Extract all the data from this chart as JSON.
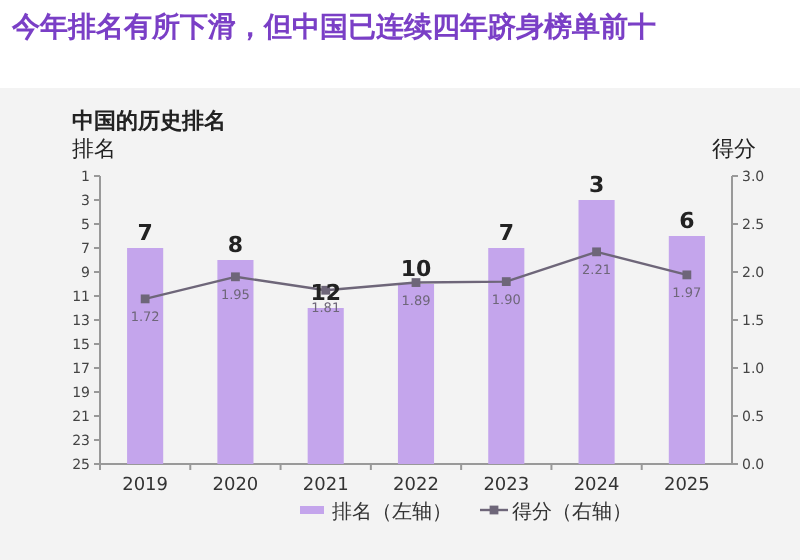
{
  "chart_data": {
    "type": "bar",
    "title": "今年排名有所下滑，但中国已连续四年跻身榜单前十",
    "subtitle": "中国的历史排名",
    "ylabel": "排名",
    "y2label": "得分",
    "categories": [
      "2019",
      "2020",
      "2021",
      "2022",
      "2023",
      "2024",
      "2025"
    ],
    "series": [
      {
        "name": "排名（左轴）",
        "color": "#c4a5ec",
        "base": [
          25,
          25,
          25,
          25,
          25,
          25,
          25
        ],
        "values": [
          -18,
          -17,
          -13,
          -15,
          -18,
          -22,
          -19
        ],
        "value_labels": [
          "7",
          "8",
          "12",
          "10",
          "7",
          "3",
          "6"
        ]
      },
      {
        "name": "得分（右轴）",
        "type": "line",
        "axis": "y2",
        "color": "#6e6679",
        "values": [
          1.72,
          1.95,
          1.81,
          1.89,
          1.9,
          2.21,
          1.97
        ],
        "value_labels": [
          "1.72",
          "1.95",
          "1.81",
          "1.89",
          "1.90",
          "2.21",
          "1.97"
        ]
      }
    ],
    "ylim": [
      25,
      1
    ],
    "yticks": [
      1,
      3,
      5,
      7,
      9,
      11,
      13,
      15,
      17,
      19,
      21,
      23,
      25
    ],
    "y2lim": [
      0,
      3
    ],
    "y2ticks": [
      {
        "value": 0,
        "label": "0.0"
      },
      {
        "value": 0.5,
        "label": "0.5"
      },
      {
        "value": 1,
        "label": "1.0"
      },
      {
        "value": 1.5,
        "label": "1.5"
      },
      {
        "value": 2,
        "label": "2.0"
      },
      {
        "value": 2.5,
        "label": "2.5"
      },
      {
        "value": 3,
        "label": "3.0"
      }
    ],
    "marker": "square",
    "legend": "bottom",
    "grid": false
  }
}
